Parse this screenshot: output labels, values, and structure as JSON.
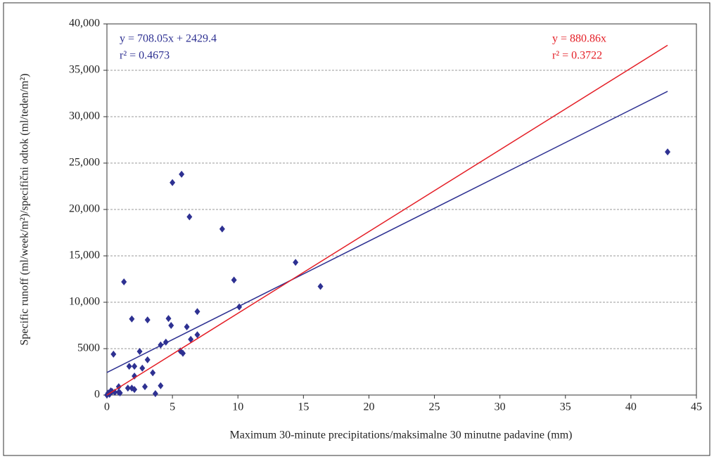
{
  "chart_data": {
    "type": "scatter",
    "x_label": "Maximum 30-minute precipitations/maksimalne 30 minutne padavine (mm)",
    "y_label": "Specific runoff (ml/week/m²)/specifični odtok (ml/teden/m²)",
    "xlim": [
      0,
      45
    ],
    "ylim": [
      0,
      40000
    ],
    "xticks": [
      0,
      5,
      10,
      15,
      20,
      25,
      30,
      35,
      40,
      45
    ],
    "yticks": [
      0,
      5000,
      {
        "value": 10000,
        "label": "10,000"
      },
      {
        "value": 15000,
        "label": "15,000"
      },
      {
        "value": 20000,
        "label": "20,000"
      },
      {
        "value": 25000,
        "label": "25,000"
      },
      {
        "value": 30000,
        "label": "30,000"
      },
      {
        "value": 35000,
        "label": "35,000"
      },
      {
        "value": 40000,
        "label": "40,000"
      }
    ],
    "grid": true,
    "series": [
      {
        "color": "#2e3192",
        "x": [
          42.8,
          5.7,
          5.0,
          6.3,
          8.8,
          14.4,
          16.3,
          9.7,
          1.3,
          10.1,
          6.9,
          1.9,
          3.1,
          4.7,
          4.9,
          6.1,
          6.9,
          6.4,
          4.5,
          4.1,
          2.5,
          5.6,
          5.8,
          0.5,
          3.1,
          1.7,
          2.1,
          2.7,
          3.5,
          2.1,
          2.9,
          4.1,
          0.9,
          1.6,
          1.9,
          2.1,
          3.7,
          0.3,
          0.4,
          0.6,
          0.9,
          0.1,
          0.2,
          0,
          1.0
        ],
        "values": [
          26200,
          23800,
          22900,
          19200,
          17900,
          14300,
          11700,
          12400,
          12200,
          9500,
          9000,
          8200,
          8100,
          8250,
          7500,
          7350,
          6500,
          6000,
          5700,
          5400,
          4700,
          4750,
          4500,
          4400,
          3800,
          3100,
          3100,
          2900,
          2400,
          2050,
          900,
          1000,
          900,
          750,
          750,
          600,
          150,
          450,
          380,
          300,
          300,
          230,
          80,
          0,
          230
        ]
      }
    ],
    "trendlines": [
      {
        "color": "#2e3192",
        "slope": 708.05,
        "intercept": 2429.4,
        "equation": "y = 708.05x + 2429.4",
        "r2": "r² = 0.4673"
      },
      {
        "color": "#e41e26",
        "slope": 880.86,
        "intercept": 0,
        "equation": "y = 880.86x",
        "r2": "r² = 0.3722"
      }
    ]
  }
}
